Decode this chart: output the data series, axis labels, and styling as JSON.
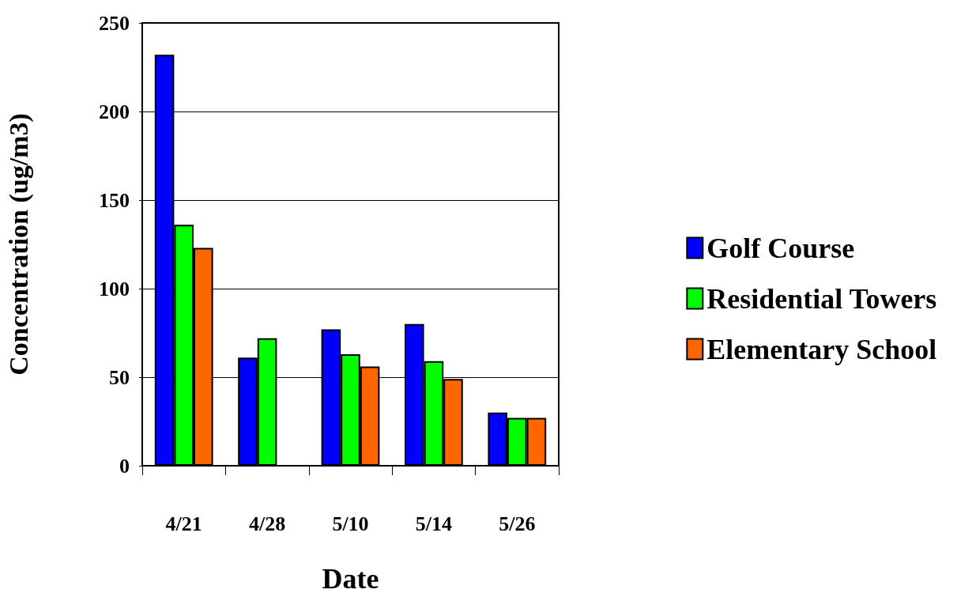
{
  "chart_data": {
    "type": "bar",
    "xlabel": "Date",
    "ylabel": "Concentration (ug/m3)",
    "categories": [
      "4/21",
      "4/28",
      "5/10",
      "5/14",
      "5/26"
    ],
    "series": [
      {
        "name": "Golf Course",
        "color": "#0000ff",
        "values": [
          232,
          61,
          77,
          80,
          30
        ]
      },
      {
        "name": "Residential Towers",
        "color": "#00ff00",
        "values": [
          136,
          72,
          63,
          59,
          27
        ]
      },
      {
        "name": "Elementary School",
        "color": "#ff6600",
        "values": [
          123,
          null,
          56,
          49,
          27
        ]
      }
    ],
    "ylim": [
      0,
      250
    ],
    "yticks": [
      0,
      50,
      100,
      150,
      200,
      250
    ],
    "grid": "y",
    "legend": "right"
  }
}
